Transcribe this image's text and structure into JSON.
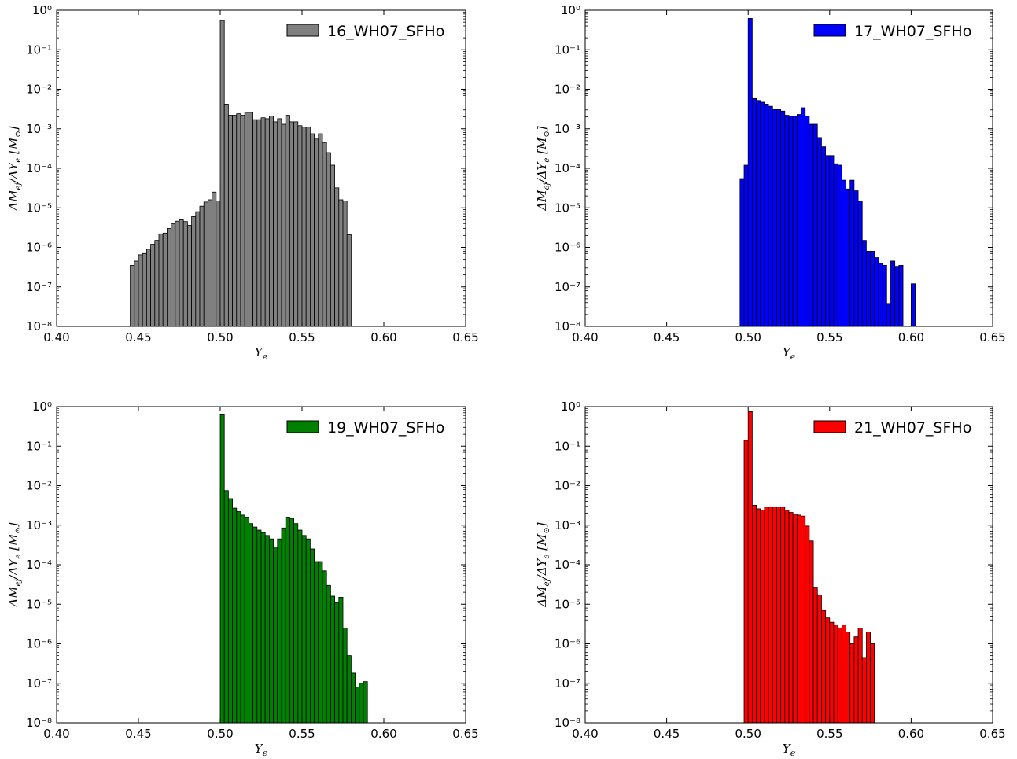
{
  "chart_data": [
    {
      "type": "bar",
      "legend": "16_WH07_SFHo",
      "color": "#808080",
      "xlabel": "Y_e",
      "ylabel": "ΔM_ej/ΔY_e [M_⊙]",
      "xlim": [
        0.4,
        0.65
      ],
      "ylim": [
        1e-08,
        1
      ],
      "yscale": "log",
      "bin_width": 0.0025,
      "x": [
        0.445,
        0.4475,
        0.45,
        0.4525,
        0.455,
        0.4575,
        0.46,
        0.4625,
        0.465,
        0.4675,
        0.47,
        0.4725,
        0.475,
        0.4775,
        0.48,
        0.4825,
        0.485,
        0.4875,
        0.49,
        0.4925,
        0.495,
        0.4975,
        0.5,
        0.5025,
        0.505,
        0.5075,
        0.51,
        0.5125,
        0.515,
        0.5175,
        0.52,
        0.5225,
        0.525,
        0.5275,
        0.53,
        0.5325,
        0.535,
        0.5375,
        0.54,
        0.5425,
        0.545,
        0.5475,
        0.55,
        0.5525,
        0.555,
        0.5575,
        0.56,
        0.5625,
        0.565,
        0.5675,
        0.57,
        0.5725,
        0.575,
        0.5775
      ],
      "values": [
        3.5e-07,
        4.5e-07,
        6.5e-07,
        7e-07,
        9e-07,
        1.2e-06,
        1.5e-06,
        2.2e-06,
        2.3e-06,
        3e-06,
        4e-06,
        4.6e-06,
        5e-06,
        4.5e-06,
        3.6e-06,
        6e-06,
        8e-06,
        1.1e-05,
        1.4e-05,
        1.6e-05,
        2.5e-05,
        1.5e-05,
        0.55,
        0.0042,
        0.0022,
        0.0022,
        0.0024,
        0.0022,
        0.0026,
        0.0026,
        0.0017,
        0.0017,
        0.0019,
        0.0018,
        0.0021,
        0.0015,
        0.0018,
        0.0013,
        0.0022,
        0.0015,
        0.0015,
        0.0012,
        0.0011,
        0.0011,
        0.00075,
        0.00055,
        0.00075,
        0.00045,
        0.00025,
        0.00012,
        3.2e-05,
        1.6e-05,
        1.5e-05,
        2.1e-06
      ]
    },
    {
      "type": "bar",
      "legend": "17_WH07_SFHo",
      "color": "#0000ff",
      "xlabel": "Y_e",
      "ylabel": "ΔM_ej/ΔY_e [M_⊙]",
      "xlim": [
        0.4,
        0.65
      ],
      "ylim": [
        1e-08,
        1
      ],
      "yscale": "log",
      "bin_width": 0.0025,
      "x": [
        0.495,
        0.4975,
        0.5,
        0.5025,
        0.505,
        0.5075,
        0.51,
        0.5125,
        0.515,
        0.5175,
        0.52,
        0.5225,
        0.525,
        0.5275,
        0.53,
        0.5325,
        0.535,
        0.5375,
        0.54,
        0.5425,
        0.545,
        0.5475,
        0.55,
        0.5525,
        0.555,
        0.5575,
        0.56,
        0.5625,
        0.565,
        0.5675,
        0.57,
        0.5725,
        0.575,
        0.5775,
        0.58,
        0.5825,
        0.585,
        0.5875,
        0.59,
        0.5925,
        0.595,
        0.5975,
        0.6
      ],
      "values": [
        5.5e-05,
        0.00012,
        0.62,
        0.0058,
        0.0052,
        0.0047,
        0.0042,
        0.0037,
        0.0031,
        0.0031,
        0.0028,
        0.0022,
        0.0021,
        0.0021,
        0.0023,
        0.0034,
        0.0021,
        0.0013,
        0.0013,
        0.0006,
        0.00035,
        0.00021,
        0.00021,
        0.00013,
        0.00012,
        5e-05,
        3e-05,
        5e-05,
        2.7e-05,
        1.5e-05,
        1.5e-06,
        8e-07,
        8e-07,
        5.5e-07,
        4e-07,
        3.5e-07,
        3.8e-08,
        4.5e-07,
        3.3e-07,
        3.5e-07,
        1e-08,
        1e-08,
        1.2e-07
      ]
    },
    {
      "type": "bar",
      "legend": "19_WH07_SFHo",
      "color": "#008000",
      "xlabel": "Y_e",
      "ylabel": "ΔM_ej/ΔY_e [M_⊙]",
      "xlim": [
        0.4,
        0.65
      ],
      "ylim": [
        1e-08,
        1
      ],
      "yscale": "log",
      "bin_width": 0.0025,
      "x": [
        0.5,
        0.5025,
        0.505,
        0.5075,
        0.51,
        0.5125,
        0.515,
        0.5175,
        0.52,
        0.5225,
        0.525,
        0.5275,
        0.53,
        0.5325,
        0.535,
        0.5375,
        0.54,
        0.5425,
        0.545,
        0.5475,
        0.55,
        0.5525,
        0.555,
        0.5575,
        0.56,
        0.5625,
        0.565,
        0.5675,
        0.57,
        0.5725,
        0.575,
        0.5775,
        0.58,
        0.5825,
        0.585,
        0.5875
      ],
      "values": [
        0.65,
        0.0075,
        0.0047,
        0.0027,
        0.0022,
        0.0018,
        0.0016,
        0.0011,
        0.0009,
        0.00075,
        0.00065,
        0.00055,
        0.00045,
        0.00028,
        0.00045,
        0.00085,
        0.0016,
        0.0015,
        0.0011,
        0.00075,
        0.00055,
        0.00045,
        0.00025,
        0.00012,
        0.00012,
        7e-05,
        3e-05,
        1.6e-05,
        1.1e-05,
        1.5e-05,
        2.5e-06,
        5e-07,
        1.8e-07,
        8e-08,
        1e-07,
        1.1e-07
      ]
    },
    {
      "type": "bar",
      "legend": "21_WH07_SFHo",
      "color": "#ff0000",
      "xlabel": "Y_e",
      "ylabel": "ΔM_ej/ΔY_e [M_⊙]",
      "xlim": [
        0.4,
        0.65
      ],
      "ylim": [
        1e-08,
        1
      ],
      "yscale": "log",
      "bin_width": 0.0025,
      "x": [
        0.4975,
        0.5,
        0.5025,
        0.505,
        0.5075,
        0.51,
        0.5125,
        0.515,
        0.5175,
        0.52,
        0.5225,
        0.525,
        0.5275,
        0.53,
        0.5325,
        0.535,
        0.5375,
        0.54,
        0.5425,
        0.545,
        0.5475,
        0.55,
        0.5525,
        0.555,
        0.5575,
        0.56,
        0.5625,
        0.565,
        0.5675,
        0.57,
        0.5725,
        0.575
      ],
      "values": [
        0.14,
        0.75,
        0.0032,
        0.0026,
        0.0024,
        0.0029,
        0.0029,
        0.0029,
        0.0029,
        0.0029,
        0.0024,
        0.0021,
        0.0019,
        0.0018,
        0.0017,
        0.00095,
        0.0004,
        2.7e-05,
        1.7e-05,
        7e-06,
        4.5e-06,
        3.5e-06,
        3e-06,
        2.5e-06,
        3e-06,
        2e-06,
        1e-06,
        1.5e-06,
        2.5e-06,
        4.5e-07,
        2e-06,
        1e-06
      ]
    }
  ]
}
